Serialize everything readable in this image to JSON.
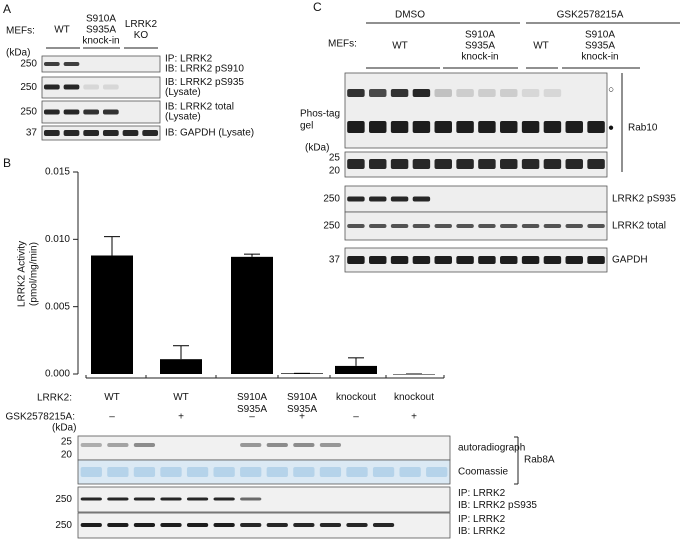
{
  "panel_a": {
    "label": "A",
    "mefs": "MEFs:",
    "columns": [
      [
        "WT"
      ],
      [
        "S910A",
        "S935A",
        "knock-in"
      ],
      [
        "LRRK2",
        "KO"
      ]
    ],
    "kda": "(kDa)",
    "blots": [
      {
        "marker": "250",
        "lines": [
          "IP: LRRK2",
          "IB: LRRK2 pS910"
        ]
      },
      {
        "marker": "250",
        "lines": [
          "IB: LRRK2 pS935",
          "(Lysate)"
        ]
      },
      {
        "marker": "250",
        "lines": [
          "IB: LRRK2 total",
          "(Lysate)"
        ]
      },
      {
        "marker": "37",
        "lines": [
          "IB: GAPDH (Lysate)"
        ]
      }
    ]
  },
  "chart_data": {
    "type": "bar",
    "panel_label": "B",
    "y_label": [
      "LRRK2 Activity",
      "(pmol/mg/min)"
    ],
    "categories": [
      "WT",
      "WT",
      "S910A S935A",
      "S910A S935A",
      "knockout",
      "knockout"
    ],
    "values": [
      0.0088,
      0.0011,
      0.0087,
      5e-05,
      0.0006,
      0
    ],
    "errors": [
      0.0014,
      0.001,
      0.0002,
      0,
      0.0006,
      0
    ],
    "color": "#000000",
    "ylim": [
      0,
      0.015
    ],
    "yticks": [
      {
        "value": 0,
        "label": "0.000"
      },
      0.005,
      {
        "value": 0.01,
        "label": "0.010"
      },
      0.015
    ],
    "row_label": "LRRK2:",
    "treatment_label": "GSK2578215A:",
    "treatment": [
      "–",
      "+",
      "–",
      "+",
      "–",
      "+"
    ]
  },
  "panel_b_blots": {
    "kda": "(kDa)",
    "bracket": "Rab8A",
    "rows": [
      {
        "markers": [
          "25",
          "20"
        ],
        "lines": [
          "autoradiograph"
        ]
      },
      {
        "markers": [],
        "lines": [
          "Coomassie"
        ]
      },
      {
        "markers": [
          "250"
        ],
        "lines": [
          "IP: LRRK2",
          "IB: LRRK2 pS935"
        ]
      },
      {
        "markers": [
          "250"
        ],
        "lines": [
          "IP: LRRK2",
          "IB: LRRK2"
        ]
      }
    ]
  },
  "panel_c": {
    "label": "C",
    "treatments": [
      "DMSO",
      "GSK2578215A"
    ],
    "mefs": "MEFs:",
    "columns": [
      [
        "WT"
      ],
      [
        "S910A",
        "S935A",
        "knock-in"
      ],
      [
        "WT"
      ],
      [
        "S910A",
        "S935A",
        "knock-in"
      ]
    ],
    "gel_label": [
      "Phos-tag",
      "gel"
    ],
    "phospho_marks": [
      "○",
      "●"
    ],
    "rab10": "Rab10",
    "kda": "(kDa)",
    "blots": [
      {
        "markers": [
          "25",
          "20"
        ],
        "label": ""
      },
      {
        "markers": [
          "250"
        ],
        "label": "LRRK2 pS935"
      },
      {
        "markers": [
          "250"
        ],
        "label": "LRRK2 total"
      },
      {
        "markers": [
          "37"
        ],
        "label": "GAPDH"
      }
    ]
  }
}
